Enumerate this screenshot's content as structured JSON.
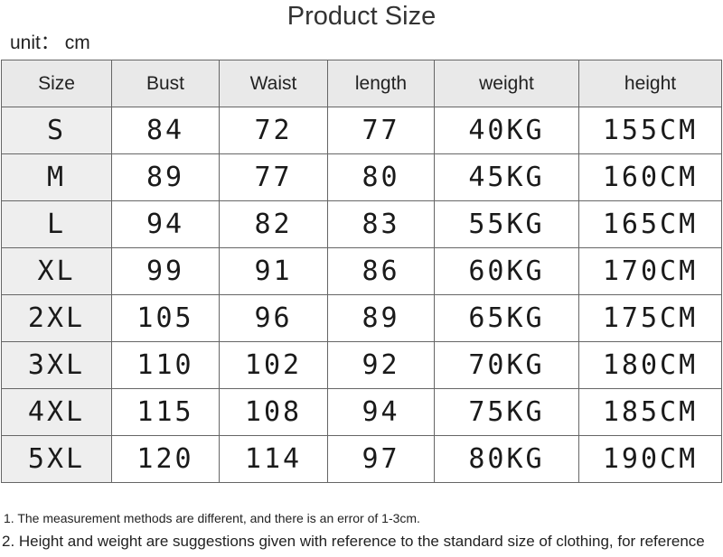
{
  "title": "Product Size",
  "unit": "unit： cm",
  "table": {
    "headers": [
      "Size",
      "Bust",
      "Waist",
      "length",
      "weight",
      "height"
    ],
    "rows": [
      [
        "S",
        "84",
        "72",
        "77",
        "40KG",
        "155CM"
      ],
      [
        "M",
        "89",
        "77",
        "80",
        "45KG",
        "160CM"
      ],
      [
        "L",
        "94",
        "82",
        "83",
        "55KG",
        "165CM"
      ],
      [
        "XL",
        "99",
        "91",
        "86",
        "60KG",
        "170CM"
      ],
      [
        "2XL",
        "105",
        "96",
        "89",
        "65KG",
        "175CM"
      ],
      [
        "3XL",
        "110",
        "102",
        "92",
        "70KG",
        "180CM"
      ],
      [
        "4XL",
        "115",
        "108",
        "94",
        "75KG",
        "185CM"
      ],
      [
        "5XL",
        "120",
        "114",
        "97",
        "80KG",
        "190CM"
      ]
    ]
  },
  "notes": [
    "1. The measurement methods are different, and there is an error of 1-3cm.",
    "2. Height and weight are suggestions given with reference to the standard size of clothing, for reference"
  ]
}
